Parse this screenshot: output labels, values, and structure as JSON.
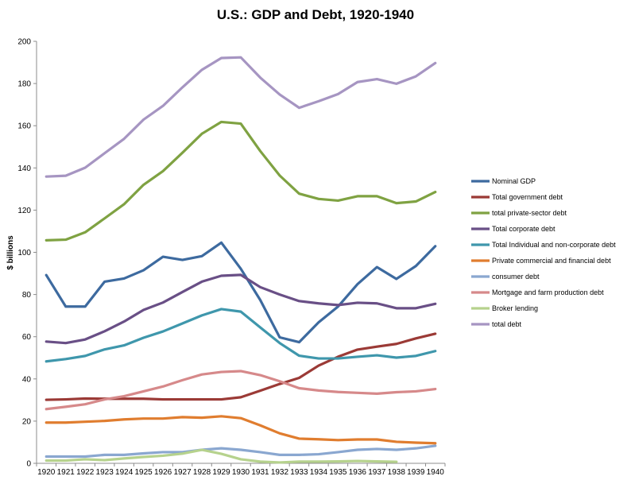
{
  "chart_data": {
    "type": "line",
    "title": "U.S.: GDP and Debt, 1920-1940",
    "xlabel": "",
    "ylabel": "$ billions",
    "ylim": [
      0,
      200
    ],
    "yticks": [
      0,
      20,
      40,
      60,
      80,
      100,
      120,
      140,
      160,
      180,
      200
    ],
    "grid": false,
    "legend_position": "right",
    "x": [
      "1920",
      "1921",
      "1922",
      "1923",
      "1924",
      "1925",
      "1926",
      "1927",
      "1928",
      "1929",
      "1930",
      "1931",
      "1932",
      "1933",
      "1934",
      "1935",
      "1936",
      "1937",
      "1938",
      "1939",
      "1940"
    ],
    "series": [
      {
        "name": "Nominal GDP",
        "color": "#3d6a9f",
        "values": [
          89.2,
          74.3,
          74.3,
          86.1,
          87.6,
          91.5,
          97.9,
          96.4,
          98.2,
          104.6,
          92.2,
          77.4,
          59.7,
          57.4,
          66.8,
          74.3,
          84.9,
          93.0,
          87.4,
          93.5,
          102.9
        ]
      },
      {
        "name": "Total government debt",
        "color": "#9b3a36",
        "values": [
          30.1,
          30.3,
          30.7,
          30.6,
          30.6,
          30.6,
          30.3,
          30.3,
          30.3,
          30.3,
          31.3,
          34.4,
          37.6,
          40.5,
          46.3,
          50.5,
          53.9,
          55.3,
          56.6,
          59.2,
          61.4
        ]
      },
      {
        "name": "total private-sector debt",
        "color": "#7fa242",
        "values": [
          105.7,
          106.0,
          109.5,
          116.1,
          122.8,
          132.0,
          138.5,
          147.2,
          156.2,
          161.8,
          161.0,
          148.0,
          136.4,
          127.8,
          125.3,
          124.5,
          126.6,
          126.6,
          123.3,
          124.1,
          128.6
        ]
      },
      {
        "name": "Total corporate debt",
        "color": "#694f86",
        "values": [
          57.7,
          57.0,
          58.7,
          62.6,
          67.2,
          72.7,
          76.2,
          81.2,
          86.1,
          88.9,
          89.3,
          83.5,
          80.0,
          76.9,
          75.8,
          75.0,
          76.1,
          75.8,
          73.5,
          73.5,
          75.6
        ]
      },
      {
        "name": "Total Individual and non-corporate debt",
        "color": "#3f97ac",
        "values": [
          48.3,
          49.4,
          50.9,
          54.0,
          55.9,
          59.5,
          62.5,
          66.3,
          70.1,
          73.1,
          71.9,
          64.4,
          57.0,
          51.0,
          49.7,
          49.7,
          50.5,
          51.2,
          50.1,
          50.9,
          53.2
        ]
      },
      {
        "name": "Private commercial and financial debt",
        "color": "#e07d2f",
        "values": [
          19.3,
          19.3,
          19.7,
          20.1,
          20.8,
          21.2,
          21.2,
          21.9,
          21.6,
          22.3,
          21.4,
          18.0,
          14.2,
          11.7,
          11.4,
          11.0,
          11.3,
          11.3,
          10.2,
          9.8,
          9.5
        ]
      },
      {
        "name": "consumer debt",
        "color": "#8aa7d0",
        "values": [
          3.2,
          3.2,
          3.2,
          4.0,
          4.0,
          4.7,
          5.3,
          5.3,
          6.4,
          7.1,
          6.4,
          5.3,
          4.0,
          4.0,
          4.3,
          5.3,
          6.4,
          6.8,
          6.4,
          7.1,
          8.3
        ]
      },
      {
        "name": "Mortgage and farm production debt",
        "color": "#d6898a",
        "values": [
          25.7,
          26.8,
          28.0,
          30.3,
          31.8,
          34.1,
          36.4,
          39.4,
          42.1,
          43.3,
          43.7,
          41.8,
          38.9,
          35.6,
          34.5,
          33.8,
          33.4,
          33.0,
          33.7,
          34.1,
          35.2
        ]
      },
      {
        "name": "Broker lending",
        "color": "#b6d28d",
        "values": [
          1.3,
          1.3,
          1.9,
          1.5,
          2.3,
          3.0,
          3.6,
          4.6,
          6.4,
          4.5,
          1.9,
          0.8,
          0.4,
          0.8,
          0.8,
          0.9,
          1.1,
          0.9,
          0.7,
          null,
          null
        ]
      },
      {
        "name": "total debt",
        "color": "#a695c2",
        "values": [
          135.9,
          136.3,
          140.1,
          147.0,
          153.8,
          162.9,
          169.4,
          178.2,
          186.5,
          192.1,
          192.4,
          182.8,
          174.8,
          168.5,
          171.6,
          175.0,
          180.7,
          182.1,
          179.9,
          183.4,
          189.7
        ]
      }
    ]
  }
}
